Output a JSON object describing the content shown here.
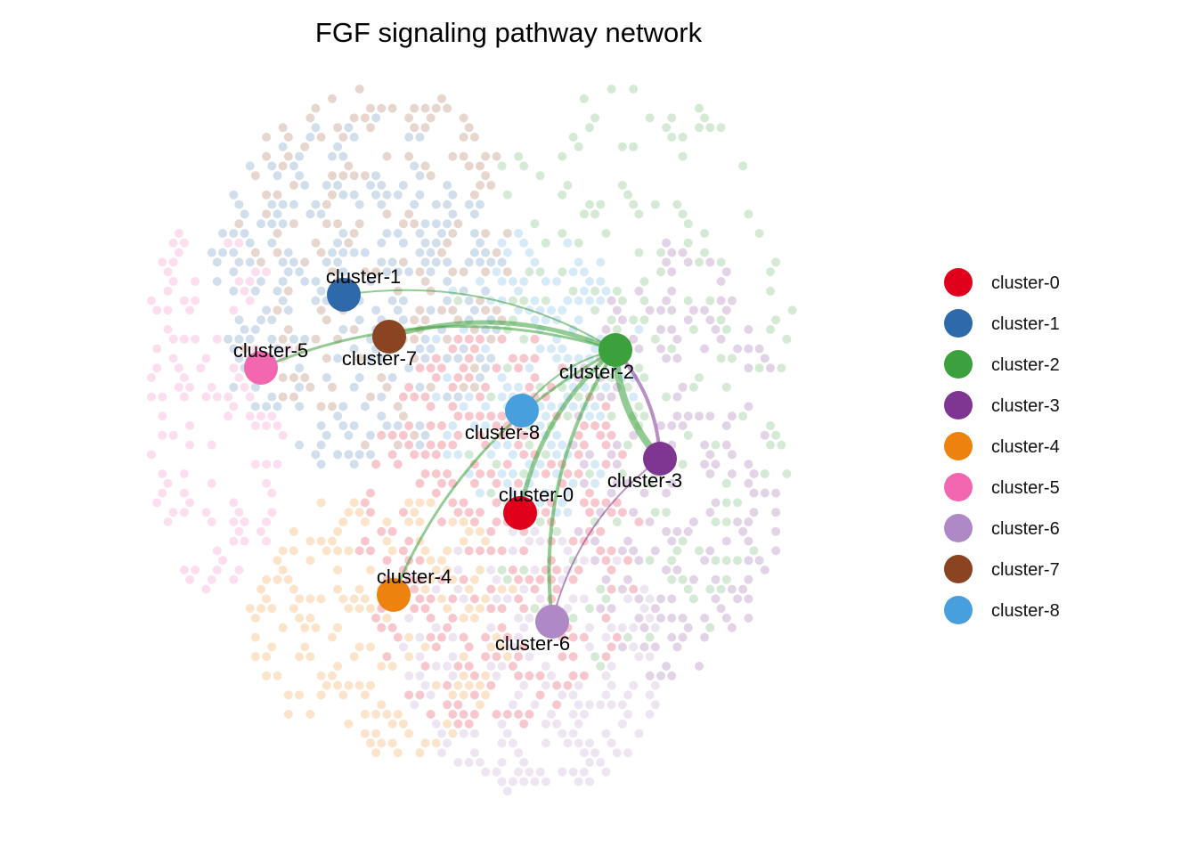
{
  "title": "FGF signaling pathway network",
  "clusters": [
    {
      "id": "cluster-0",
      "label": "cluster-0",
      "color": "#E1001B"
    },
    {
      "id": "cluster-1",
      "label": "cluster-1",
      "color": "#2E6AAA"
    },
    {
      "id": "cluster-2",
      "label": "cluster-2",
      "color": "#3CA03C"
    },
    {
      "id": "cluster-3",
      "label": "cluster-3",
      "color": "#7F3592"
    },
    {
      "id": "cluster-4",
      "label": "cluster-4",
      "color": "#EE820E"
    },
    {
      "id": "cluster-5",
      "label": "cluster-5",
      "color": "#F367B1"
    },
    {
      "id": "cluster-6",
      "label": "cluster-6",
      "color": "#AE89C6"
    },
    {
      "id": "cluster-7",
      "label": "cluster-7",
      "color": "#8B4421"
    },
    {
      "id": "cluster-8",
      "label": "cluster-8",
      "color": "#479FDD"
    }
  ],
  "edges": [
    {
      "from": "cluster-2",
      "to": "cluster-1",
      "weight": 2
    },
    {
      "from": "cluster-2",
      "to": "cluster-7",
      "weight": 5
    },
    {
      "from": "cluster-2",
      "to": "cluster-5",
      "weight": 3
    },
    {
      "from": "cluster-2",
      "to": "cluster-8",
      "weight": 2
    },
    {
      "from": "cluster-2",
      "to": "cluster-0",
      "weight": 5
    },
    {
      "from": "cluster-2",
      "to": "cluster-4",
      "weight": 3
    },
    {
      "from": "cluster-2",
      "to": "cluster-6",
      "weight": 4
    },
    {
      "from": "cluster-2",
      "to": "cluster-3",
      "weight": 8
    },
    {
      "from": "cluster-3",
      "to": "cluster-2",
      "weight": 4
    },
    {
      "from": "cluster-3",
      "to": "cluster-6",
      "weight": 2
    }
  ]
}
